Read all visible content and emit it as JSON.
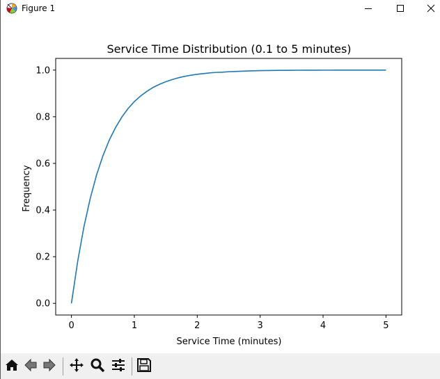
{
  "window": {
    "title": "Figure 1",
    "app_icon": "matplotlib-icon",
    "controls": [
      "minimize-icon",
      "maximize-icon",
      "close-icon"
    ]
  },
  "toolbar": {
    "buttons": [
      {
        "name": "home-icon",
        "tooltip": "Reset original view"
      },
      {
        "name": "back-arrow-icon",
        "tooltip": "Back to previous view"
      },
      {
        "name": "forward-arrow-icon",
        "tooltip": "Forward to next view"
      },
      {
        "name": "pan-icon",
        "tooltip": "Pan axes"
      },
      {
        "name": "zoom-icon",
        "tooltip": "Zoom to rectangle"
      },
      {
        "name": "configure-subplots-icon",
        "tooltip": "Configure subplots"
      },
      {
        "name": "save-icon",
        "tooltip": "Save the figure"
      }
    ]
  },
  "chart_data": {
    "type": "line",
    "title": "Service Time Distribution (0.1 to 5 minutes)",
    "xlabel": "Service Time (minutes)",
    "ylabel": "Frequency",
    "xlim": [
      -0.25,
      5.25
    ],
    "ylim": [
      -0.05,
      1.05
    ],
    "xticks": [
      0,
      1,
      2,
      3,
      4,
      5
    ],
    "xtick_labels": [
      "0",
      "1",
      "2",
      "3",
      "4",
      "5"
    ],
    "yticks": [
      0.0,
      0.2,
      0.4,
      0.6,
      0.8,
      1.0
    ],
    "ytick_labels": [
      "0.0",
      "0.2",
      "0.4",
      "0.6",
      "0.8",
      "1.0"
    ],
    "grid": false,
    "line_color": "#1f77b4",
    "series": [
      {
        "x": [
          0,
          0.1,
          0.2,
          0.3,
          0.4,
          0.5,
          0.6,
          0.7,
          0.8,
          0.9,
          1.0,
          1.1,
          1.2,
          1.3,
          1.4,
          1.5,
          1.6,
          1.7,
          1.8,
          1.9,
          2.0,
          2.1,
          2.2,
          2.3,
          2.4,
          2.5,
          2.6,
          2.7,
          2.8,
          2.9,
          3.0,
          3.1,
          3.2,
          3.3,
          3.4,
          3.5,
          3.6,
          3.7,
          3.8,
          3.9,
          4.0,
          4.1,
          4.2,
          4.3,
          4.4,
          4.5,
          4.6,
          4.7,
          4.8,
          4.9,
          5.0
        ],
        "values": [
          0.0,
          0.181,
          0.33,
          0.451,
          0.551,
          0.632,
          0.699,
          0.753,
          0.798,
          0.835,
          0.865,
          0.889,
          0.909,
          0.926,
          0.939,
          0.95,
          0.959,
          0.967,
          0.973,
          0.978,
          0.982,
          0.985,
          0.988,
          0.99,
          0.991,
          0.993,
          0.994,
          0.995,
          0.996,
          0.997,
          0.9975,
          0.998,
          0.9984,
          0.9987,
          0.9989,
          0.9991,
          0.9993,
          0.9994,
          0.9995,
          0.9996,
          0.9997,
          0.9997,
          0.9998,
          0.9998,
          0.9998,
          0.9999,
          0.9999,
          0.9999,
          0.9999,
          0.9999,
          1.0
        ]
      }
    ]
  }
}
